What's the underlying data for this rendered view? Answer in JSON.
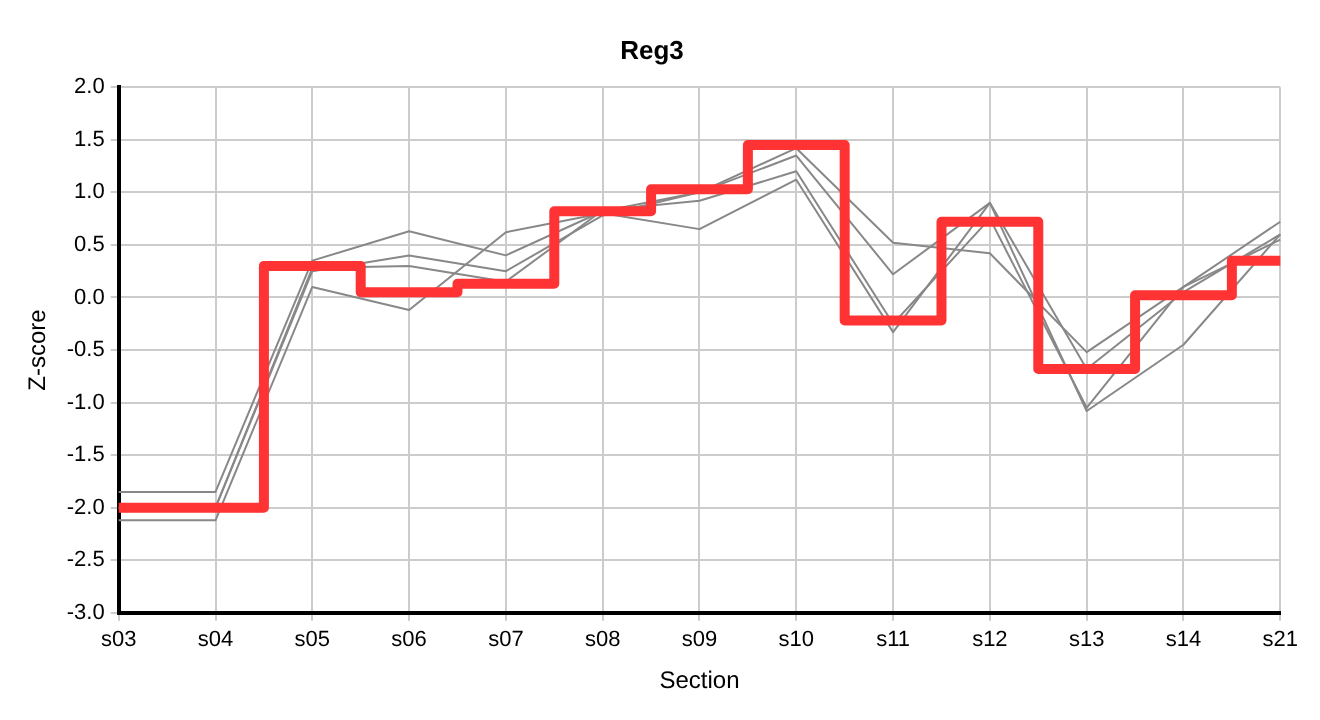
{
  "chart_data": {
    "type": "line",
    "title": "Reg3",
    "xlabel": "Section",
    "ylabel": "Z-score",
    "categories": [
      "s03",
      "s04",
      "s05",
      "s06",
      "s07",
      "s08",
      "s09",
      "s10",
      "s11",
      "s12",
      "s13",
      "s14",
      "s21"
    ],
    "series": [
      {
        "type": "step",
        "color": "#ff3333",
        "values": [
          -2.0,
          -2.0,
          0.3,
          0.05,
          0.13,
          0.82,
          1.03,
          1.45,
          -0.22,
          0.72,
          -0.68,
          0.02,
          0.35
        ]
      },
      {
        "color": "#888888",
        "values": [
          -1.85,
          -1.85,
          0.35,
          0.63,
          0.4,
          0.82,
          1.0,
          1.42,
          0.52,
          0.42,
          -0.52,
          0.1,
          0.72
        ]
      },
      {
        "color": "#888888",
        "values": [
          -2.0,
          -2.0,
          0.25,
          0.4,
          0.25,
          0.78,
          1.0,
          1.35,
          0.22,
          0.9,
          -0.68,
          0.05,
          0.6
        ]
      },
      {
        "color": "#888888",
        "values": [
          -2.12,
          -2.12,
          0.1,
          -0.12,
          0.62,
          0.8,
          0.65,
          1.12,
          -0.33,
          0.9,
          -1.08,
          -0.45,
          0.6
        ]
      },
      {
        "color": "#888888",
        "values": [
          -2.0,
          -2.0,
          0.28,
          0.3,
          0.15,
          0.83,
          0.92,
          1.2,
          -0.25,
          0.75,
          -1.05,
          0.1,
          0.55
        ]
      }
    ],
    "ylim": [
      -3,
      2
    ],
    "yticks": [
      {
        "value": -3,
        "label": "-3.0"
      },
      {
        "value": -2.5,
        "label": "-2.5"
      },
      {
        "value": -2,
        "label": "-2.0"
      },
      {
        "value": -1.5,
        "label": "-1.5"
      },
      {
        "value": -1,
        "label": "-1.0"
      },
      {
        "value": -0.5,
        "label": "-0.5"
      },
      {
        "value": 0,
        "label": "0.0"
      },
      {
        "value": 0.5,
        "label": "0.5"
      },
      {
        "value": 1,
        "label": "1.0"
      },
      {
        "value": 1.5,
        "label": "1.5"
      },
      {
        "value": 2,
        "label": "2.0"
      }
    ],
    "grid": true,
    "marker": "none",
    "line_style": "solid"
  }
}
